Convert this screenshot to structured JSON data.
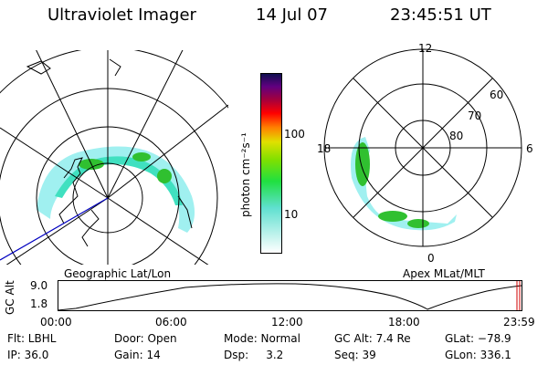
{
  "header": {
    "instrument": "Ultraviolet Imager",
    "date": "14 Jul 07",
    "time": "23:45:51 UT"
  },
  "colorbar": {
    "unit_label": "photon cm⁻²s⁻¹",
    "ticks": [
      "100",
      "10"
    ]
  },
  "geo_panel": {
    "label": "Geographic Lat/Lon"
  },
  "mag_panel": {
    "label": "Apex MLat/MLT",
    "mlt_labels": {
      "top": "12",
      "left": "18",
      "right": "6",
      "bottom": "0"
    },
    "lat_labels": [
      "60",
      "70",
      "80"
    ]
  },
  "timeline": {
    "ylabel": "GC Alt",
    "ytick_top": "9.0",
    "ytick_bottom": "1.8",
    "xticks": [
      "00:00",
      "06:00",
      "12:00",
      "18:00",
      "23:59"
    ]
  },
  "status": {
    "filter": "Flt: LBHL",
    "ip": "IP: 36.0",
    "door": "Door: Open",
    "gain": "Gain: 14",
    "mode": "Mode: Normal",
    "dsp": "Dsp:     3.2",
    "gc_alt": "GC Alt: 7.4 Re",
    "seq": "Seq: 39",
    "glat": "GLat: −78.9",
    "glon": "GLon: 336.1"
  },
  "colors": {
    "colorbar_stops": [
      "#ffffff",
      "#60e0d0",
      "#20e040",
      "#80e000",
      "#e0e000",
      "#ff8000",
      "#ff0000",
      "#a00040",
      "#600080",
      "#101050"
    ],
    "aurora_outer": "#a0f0f0",
    "aurora_mid": "#40e0c0",
    "aurora_core": "#30c030",
    "orbit_line": "#0000c0",
    "time_marker": "#d00000"
  }
}
